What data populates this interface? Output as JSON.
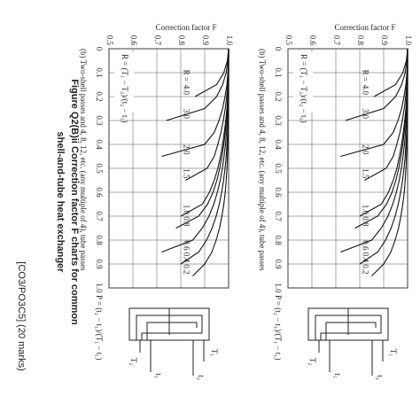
{
  "chart_data": [
    {
      "type": "line",
      "ylabel": "Correction factor F",
      "caption": "(b) Two-shell passes and 4, 8, 12, etc. (any multiple of 4), tube passes",
      "xlabel": "P = (t₂ − t₁)/(T₁ − t₁)",
      "r_label": "R =",
      "r_formula": "R = (T₁ − T₂)/(t₂ − t₁)",
      "diagram_labels": [
        "T₁",
        "t₂",
        "T₂",
        "t₁"
      ],
      "color": "#111",
      "grid": true,
      "xlim": [
        0,
        1
      ],
      "xticks": [
        0,
        0.1,
        0.2,
        0.3,
        0.4,
        0.5,
        0.6,
        0.7,
        0.8,
        0.9,
        {
          "value": 1,
          "label": "1.0"
        }
      ],
      "ylim": [
        0.5,
        1
      ],
      "yticks": [
        0.5,
        0.6,
        0.7,
        0.8,
        0.9,
        {
          "value": 1,
          "label": "1.0"
        }
      ],
      "x": [
        0,
        0.05,
        0.1,
        0.15,
        0.2,
        0.25,
        0.3,
        0.35,
        0.4,
        0.45,
        0.5,
        0.55,
        0.6,
        0.65,
        0.7,
        0.75,
        0.8,
        0.85,
        0.9,
        0.95,
        1
      ],
      "series": [
        {
          "name": "4.0",
          "values": [
            1,
            0.995,
            0.98,
            0.95,
            0.86,
            null,
            null,
            null,
            null,
            null,
            null,
            null,
            null,
            null,
            null,
            null,
            null,
            null,
            null,
            null,
            null
          ]
        },
        {
          "name": "3.0",
          "values": [
            1,
            0.997,
            0.99,
            0.975,
            0.95,
            0.9,
            0.74,
            null,
            null,
            null,
            null,
            null,
            null,
            null,
            null,
            null,
            null,
            null,
            null,
            null,
            null
          ]
        },
        {
          "name": "2.0",
          "values": [
            1,
            1,
            0.997,
            0.993,
            0.985,
            0.975,
            0.96,
            0.94,
            0.9,
            0.72,
            null,
            null,
            null,
            null,
            null,
            null,
            null,
            null,
            null,
            null,
            null
          ]
        },
        {
          "name": "1.5",
          "values": [
            1,
            1,
            0.999,
            0.996,
            0.992,
            0.986,
            0.978,
            0.968,
            0.955,
            0.94,
            0.91,
            0.82,
            null,
            null,
            null,
            null,
            null,
            null,
            null,
            null,
            null
          ]
        },
        {
          "name": "1.0",
          "values": [
            1,
            1,
            1,
            0.998,
            0.996,
            0.993,
            0.988,
            0.982,
            0.975,
            0.966,
            0.955,
            0.94,
            0.92,
            0.89,
            0.8,
            null,
            null,
            null,
            null,
            null,
            null
          ]
        },
        {
          "name": "0.8",
          "values": [
            1,
            1,
            1,
            0.999,
            0.997,
            0.995,
            0.991,
            0.986,
            0.98,
            0.972,
            0.963,
            0.951,
            0.935,
            0.912,
            0.875,
            0.78,
            null,
            null,
            null,
            null,
            null
          ]
        },
        {
          "name": "0.6",
          "values": [
            1,
            1,
            1,
            1,
            0.998,
            0.997,
            0.995,
            0.991,
            0.987,
            0.981,
            0.974,
            0.965,
            0.953,
            0.938,
            0.918,
            0.89,
            0.85,
            0.72,
            null,
            null,
            null
          ]
        },
        {
          "name": "0.4",
          "values": [
            1,
            1,
            1,
            1,
            1,
            0.999,
            0.998,
            0.996,
            0.993,
            0.99,
            0.985,
            0.979,
            0.971,
            0.961,
            0.948,
            0.931,
            0.908,
            0.875,
            0.8,
            null,
            null
          ]
        },
        {
          "name": "0.2",
          "values": [
            1,
            1,
            1,
            1,
            1,
            1,
            0.999,
            0.998,
            0.997,
            0.995,
            0.993,
            0.99,
            0.986,
            0.98,
            0.972,
            0.962,
            0.948,
            0.93,
            0.9,
            0.85,
            null
          ]
        }
      ]
    },
    {
      "type": "line",
      "ylabel": "Correction factor F",
      "caption": "(b) Two-shell passes and 4, 8, 12, etc. (any multiple of 4), tube passes",
      "xlabel": "P = (t₂ − t₁)/(T₁ − t₁)",
      "r_label": "R =",
      "r_formula": "R = (T₁ − T₂)/(t₂ − t₁)",
      "diagram_labels": [
        "T₁",
        "t₂",
        "T₂",
        "t₁"
      ],
      "color": "#111",
      "grid": true,
      "xlim": [
        0,
        1
      ],
      "xticks": [
        0,
        0.1,
        0.2,
        0.3,
        0.4,
        0.5,
        0.6,
        0.7,
        0.8,
        0.9,
        {
          "value": 1,
          "label": "1.0"
        }
      ],
      "ylim": [
        0.5,
        1
      ],
      "yticks": [
        0.5,
        0.6,
        0.7,
        0.8,
        0.9,
        {
          "value": 1,
          "label": "1.0"
        }
      ],
      "x": [
        0,
        0.05,
        0.1,
        0.15,
        0.2,
        0.25,
        0.3,
        0.35,
        0.4,
        0.45,
        0.5,
        0.55,
        0.6,
        0.65,
        0.7,
        0.75,
        0.8,
        0.85,
        0.9,
        0.95,
        1
      ],
      "series": [
        {
          "name": "4.0",
          "values": [
            1,
            0.995,
            0.98,
            0.95,
            0.86,
            null,
            null,
            null,
            null,
            null,
            null,
            null,
            null,
            null,
            null,
            null,
            null,
            null,
            null,
            null,
            null
          ]
        },
        {
          "name": "3.0",
          "values": [
            1,
            0.997,
            0.99,
            0.975,
            0.95,
            0.9,
            0.74,
            null,
            null,
            null,
            null,
            null,
            null,
            null,
            null,
            null,
            null,
            null,
            null,
            null,
            null
          ]
        },
        {
          "name": "2.0",
          "values": [
            1,
            1,
            0.997,
            0.993,
            0.985,
            0.975,
            0.96,
            0.94,
            0.9,
            0.72,
            null,
            null,
            null,
            null,
            null,
            null,
            null,
            null,
            null,
            null,
            null
          ]
        },
        {
          "name": "1.5",
          "values": [
            1,
            1,
            0.999,
            0.996,
            0.992,
            0.986,
            0.978,
            0.968,
            0.955,
            0.94,
            0.91,
            0.82,
            null,
            null,
            null,
            null,
            null,
            null,
            null,
            null,
            null
          ]
        },
        {
          "name": "1.0",
          "values": [
            1,
            1,
            1,
            0.998,
            0.996,
            0.993,
            0.988,
            0.982,
            0.975,
            0.966,
            0.955,
            0.94,
            0.92,
            0.89,
            0.8,
            null,
            null,
            null,
            null,
            null,
            null
          ]
        },
        {
          "name": "0.8",
          "values": [
            1,
            1,
            1,
            0.999,
            0.997,
            0.995,
            0.991,
            0.986,
            0.98,
            0.972,
            0.963,
            0.951,
            0.935,
            0.912,
            0.875,
            0.78,
            null,
            null,
            null,
            null,
            null
          ]
        },
        {
          "name": "0.6",
          "values": [
            1,
            1,
            1,
            1,
            0.998,
            0.997,
            0.995,
            0.991,
            0.987,
            0.981,
            0.974,
            0.965,
            0.953,
            0.938,
            0.918,
            0.89,
            0.85,
            0.72,
            null,
            null,
            null
          ]
        },
        {
          "name": "0.4",
          "values": [
            1,
            1,
            1,
            1,
            1,
            0.999,
            0.998,
            0.996,
            0.993,
            0.99,
            0.985,
            0.979,
            0.971,
            0.961,
            0.948,
            0.931,
            0.908,
            0.875,
            0.8,
            null,
            null
          ]
        },
        {
          "name": "0.2",
          "values": [
            1,
            1,
            1,
            1,
            1,
            1,
            0.999,
            0.998,
            0.997,
            0.995,
            0.993,
            0.99,
            0.986,
            0.98,
            0.972,
            0.962,
            0.948,
            0.93,
            0.9,
            0.85,
            null
          ]
        }
      ]
    }
  ],
  "figure_caption": [
    "Figure Q2(B)ii Correction factor F charts for common",
    "shell-and-tube heat exchanger"
  ],
  "marks": "[CO3/PO3C5] (20 marks)"
}
